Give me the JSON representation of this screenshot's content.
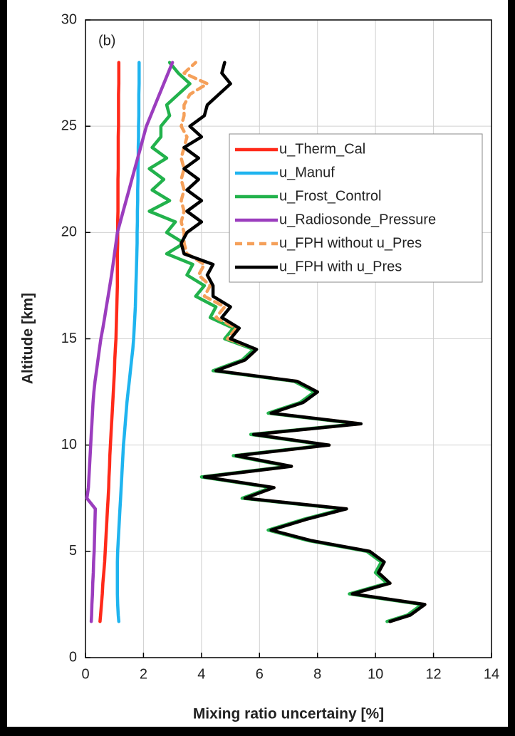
{
  "chart_data": {
    "type": "line",
    "orientation": "vertical-profile",
    "panel_label": "(b)",
    "xlabel": "Mixing ratio uncertainy [%]",
    "ylabel": "Altitude [km]",
    "xlim": [
      0,
      14
    ],
    "xticks": [
      0,
      2,
      4,
      6,
      8,
      10,
      12,
      14
    ],
    "ylim": [
      0,
      30
    ],
    "yticks": [
      0,
      5,
      10,
      15,
      20,
      25,
      30
    ],
    "grid": true,
    "legend": "upper right",
    "altitude": [
      1.7,
      2,
      2.5,
      3,
      3.5,
      4,
      4.5,
      5,
      5.5,
      6,
      6.5,
      7,
      7.5,
      8,
      8.5,
      9,
      9.5,
      10,
      10.5,
      11,
      11.5,
      12,
      12.5,
      13,
      13.5,
      14,
      14.5,
      15,
      15.5,
      16,
      16.5,
      17,
      17.5,
      18,
      18.5,
      19,
      19.5,
      20,
      20.5,
      21,
      21.5,
      22,
      22.5,
      23,
      23.5,
      24,
      24.5,
      25,
      25.5,
      26,
      26.5,
      27,
      27.5,
      28
    ],
    "series": [
      {
        "name": "u_Therm_Cal",
        "color": "#ff2a1a",
        "dash": false,
        "values": [
          0.5,
          0.52,
          0.55,
          0.58,
          0.6,
          0.63,
          0.66,
          0.68,
          0.7,
          0.72,
          0.74,
          0.76,
          0.78,
          0.8,
          0.81,
          0.83,
          0.84,
          0.86,
          0.88,
          0.9,
          0.92,
          0.94,
          0.96,
          0.98,
          1.0,
          1.01,
          1.03,
          1.05,
          1.06,
          1.07,
          1.08,
          1.09,
          1.1,
          1.1,
          1.1,
          1.1,
          1.11,
          1.11,
          1.11,
          1.12,
          1.12,
          1.12,
          1.12,
          1.13,
          1.13,
          1.13,
          1.13,
          1.14,
          1.14,
          1.14,
          1.14,
          1.15,
          1.15,
          1.15
        ]
      },
      {
        "name": "u_Manuf",
        "color": "#1fb4ef",
        "dash": false,
        "values": [
          1.15,
          1.13,
          1.11,
          1.1,
          1.1,
          1.1,
          1.1,
          1.11,
          1.13,
          1.15,
          1.17,
          1.19,
          1.21,
          1.23,
          1.25,
          1.27,
          1.29,
          1.31,
          1.34,
          1.37,
          1.4,
          1.43,
          1.47,
          1.51,
          1.55,
          1.59,
          1.63,
          1.66,
          1.68,
          1.7,
          1.72,
          1.73,
          1.74,
          1.75,
          1.76,
          1.77,
          1.78,
          1.78,
          1.79,
          1.79,
          1.8,
          1.8,
          1.81,
          1.81,
          1.82,
          1.82,
          1.83,
          1.83,
          1.84,
          1.84,
          1.84,
          1.85,
          1.85,
          1.85
        ]
      },
      {
        "name": "u_Frost_Control",
        "color": "#22b24c",
        "dash": false,
        "values": [
          10.4,
          11.1,
          11.6,
          9.1,
          10.4,
          10.0,
          10.2,
          9.7,
          7.7,
          6.3,
          7.5,
          8.9,
          5.4,
          6.4,
          4.0,
          7.0,
          5.1,
          8.3,
          5.7,
          9.4,
          6.3,
          7.4,
          7.9,
          7.2,
          4.4,
          5.4,
          5.8,
          4.8,
          5.1,
          4.3,
          4.5,
          3.8,
          4.1,
          3.5,
          3.7,
          2.8,
          3.4,
          2.8,
          3.1,
          2.2,
          2.9,
          2.3,
          2.7,
          2.2,
          2.8,
          2.3,
          2.6,
          2.6,
          2.9,
          2.8,
          3.2,
          3.6,
          3.2,
          2.9
        ]
      },
      {
        "name": "u_Radiosonde_Pressure",
        "color": "#9b3dbe",
        "dash": false,
        "values": [
          0.2,
          0.21,
          0.22,
          0.24,
          0.25,
          0.27,
          0.28,
          0.3,
          0.31,
          0.32,
          0.33,
          0.34,
          0.05,
          0.1,
          0.12,
          0.14,
          0.16,
          0.18,
          0.2,
          0.22,
          0.24,
          0.26,
          0.29,
          0.33,
          0.38,
          0.43,
          0.48,
          0.53,
          0.6,
          0.66,
          0.72,
          0.78,
          0.84,
          0.9,
          0.95,
          1.0,
          1.05,
          1.1,
          1.2,
          1.3,
          1.4,
          1.5,
          1.6,
          1.7,
          1.8,
          1.9,
          2.0,
          2.1,
          2.25,
          2.4,
          2.55,
          2.7,
          2.85,
          3.0
        ]
      },
      {
        "name": "u_FPH without u_Pres",
        "color": "#f5a05a",
        "dash": true,
        "values": [
          10.5,
          11.2,
          11.7,
          9.2,
          10.5,
          10.1,
          10.3,
          9.8,
          7.8,
          6.4,
          7.6,
          9.0,
          5.5,
          6.5,
          4.1,
          7.1,
          5.2,
          8.4,
          5.8,
          9.5,
          6.4,
          7.5,
          8.0,
          7.3,
          4.5,
          5.5,
          5.9,
          4.9,
          5.2,
          4.5,
          4.8,
          4.1,
          4.3,
          3.9,
          4.1,
          3.5,
          3.4,
          3.4,
          3.3,
          3.4,
          3.3,
          3.4,
          3.3,
          3.4,
          3.3,
          3.4,
          3.5,
          3.3,
          3.4,
          3.4,
          3.6,
          4.2,
          3.4,
          3.8
        ]
      },
      {
        "name": "u_FPH with u_Pres",
        "color": "#000000",
        "dash": false,
        "values": [
          10.5,
          11.2,
          11.7,
          9.2,
          10.5,
          10.1,
          10.3,
          9.8,
          7.8,
          6.4,
          7.6,
          9.0,
          5.5,
          6.5,
          4.1,
          7.1,
          5.2,
          8.4,
          5.8,
          9.5,
          6.4,
          7.5,
          8.0,
          7.3,
          4.5,
          5.5,
          5.9,
          5.0,
          5.3,
          4.7,
          5.0,
          4.4,
          4.4,
          4.2,
          4.4,
          3.4,
          3.3,
          3.5,
          4.0,
          3.5,
          4.0,
          3.5,
          3.9,
          3.4,
          3.9,
          3.4,
          4.0,
          3.6,
          4.1,
          4.2,
          4.6,
          5.0,
          4.7,
          4.8
        ]
      }
    ]
  }
}
